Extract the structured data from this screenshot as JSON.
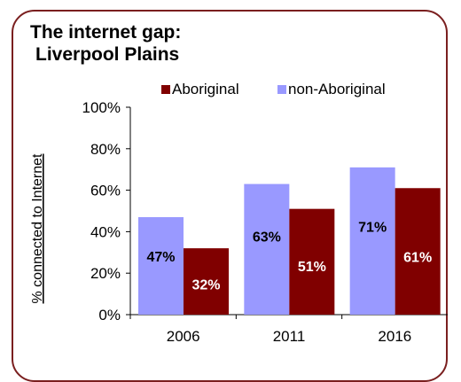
{
  "title_line1": "The internet gap:",
  "title_line2": "Liverpool Plains",
  "chart_data": {
    "type": "bar",
    "categories": [
      "2006",
      "2011",
      "2016"
    ],
    "series": [
      {
        "name": "non-Aboriginal",
        "values": [
          47,
          63,
          71
        ],
        "labels": [
          "47%",
          "63%",
          "71%"
        ],
        "color": "#9999ff",
        "label_color": "#000000"
      },
      {
        "name": "Aboriginal",
        "values": [
          32,
          51,
          61
        ],
        "labels": [
          "32%",
          "51%",
          "61%"
        ],
        "color": "#800000",
        "label_color": "#ffffff"
      }
    ],
    "legend_order": [
      "Aboriginal",
      "non-Aboriginal"
    ],
    "legend_position": "top",
    "ylabel": "% connected to Internet",
    "ylim": [
      0,
      100
    ],
    "yticks": [
      "0%",
      "20%",
      "40%",
      "60%",
      "80%",
      "100%"
    ],
    "grid": false
  }
}
